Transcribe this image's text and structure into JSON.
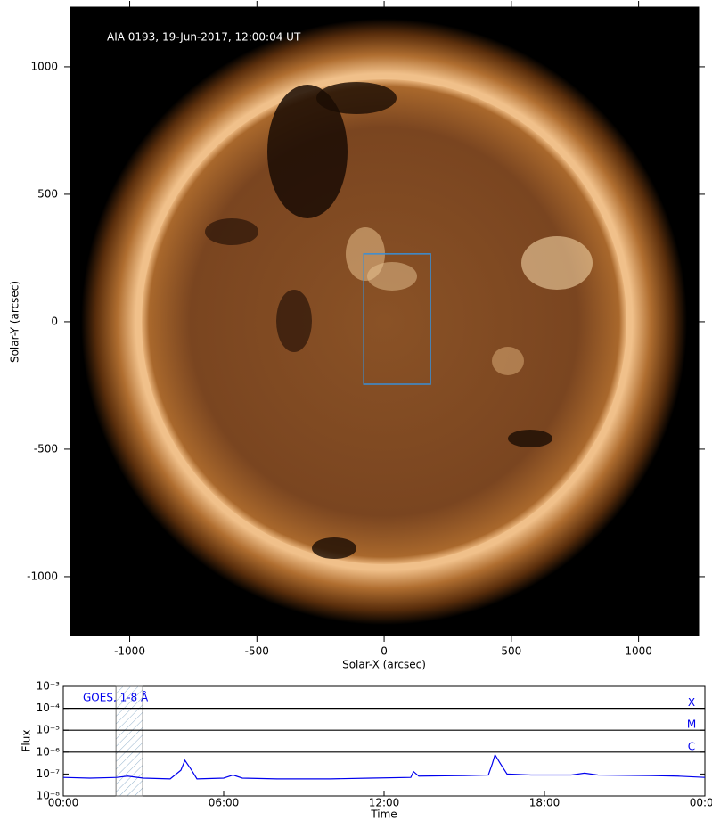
{
  "chart_data": [
    {
      "type": "image",
      "annotation": "AIA 0193, 19-Jun-2017, 12:00:04 UT",
      "xlabel": "Solar-X (arcsec)",
      "ylabel": "Solar-Y (arcsec)",
      "xlim": [
        -1233,
        1236
      ],
      "ylim": [
        -1231,
        1234
      ],
      "xticks": [
        -1000,
        -500,
        0,
        500,
        1000
      ],
      "yticks": [
        -1000,
        -500,
        0,
        500,
        1000
      ],
      "rectangle": {
        "x": [
          -80,
          182
        ],
        "y": [
          -245,
          266
        ],
        "color": "#3a8fd6"
      }
    },
    {
      "type": "line",
      "xlabel": "Time",
      "ylabel": "Flux",
      "log_y": true,
      "xlim": [
        0,
        24
      ],
      "ylim": [
        1e-08,
        0.001
      ],
      "xticks": [
        {
          "value": 0,
          "label": "00:00"
        },
        {
          "value": 6,
          "label": "06:00"
        },
        {
          "value": 12,
          "label": "12:00"
        },
        {
          "value": 18,
          "label": "18:00"
        },
        {
          "value": 24,
          "label": "00:00"
        }
      ],
      "yticks": [
        {
          "value": 1e-08,
          "label": "10⁻⁸"
        },
        {
          "value": 1e-07,
          "label": "10⁻⁷"
        },
        {
          "value": 1e-06,
          "label": "10⁻⁶"
        },
        {
          "value": 1e-05,
          "label": "10⁻⁵"
        },
        {
          "value": 0.0001,
          "label": "10⁻⁴"
        },
        {
          "value": 0.001,
          "label": "10⁻³"
        }
      ],
      "levels": [
        {
          "value": 0.0001,
          "label": "X"
        },
        {
          "value": 1e-05,
          "label": "M"
        },
        {
          "value": 1e-06,
          "label": "C"
        }
      ],
      "highlight": [
        1.97,
        2.97
      ],
      "x": [
        0,
        1,
        2,
        2.4,
        3,
        4,
        4.4,
        4.55,
        4.8,
        5,
        6,
        6.35,
        6.7,
        8,
        10,
        11.5,
        13,
        13.1,
        13.3,
        15,
        15.9,
        16.05,
        16.15,
        16.35,
        16.6,
        17.5,
        19,
        19.5,
        20,
        22,
        23,
        24
      ],
      "series": [
        {
          "name": "GOES, 1-8 Å",
          "color": "#0000ee",
          "values": [
            7e-08,
            6.5e-08,
            7e-08,
            8e-08,
            6.5e-08,
            6e-08,
            1.5e-07,
            4.2e-07,
            1.5e-07,
            6e-08,
            6.5e-08,
            9e-08,
            6.5e-08,
            6e-08,
            6e-08,
            6.5e-08,
            7e-08,
            1.3e-07,
            8e-08,
            8.5e-08,
            9e-08,
            3e-07,
            7.5e-07,
            3e-07,
            1e-07,
            9e-08,
            9e-08,
            1.1e-07,
            9e-08,
            8.5e-08,
            8e-08,
            7e-08
          ]
        }
      ]
    }
  ]
}
